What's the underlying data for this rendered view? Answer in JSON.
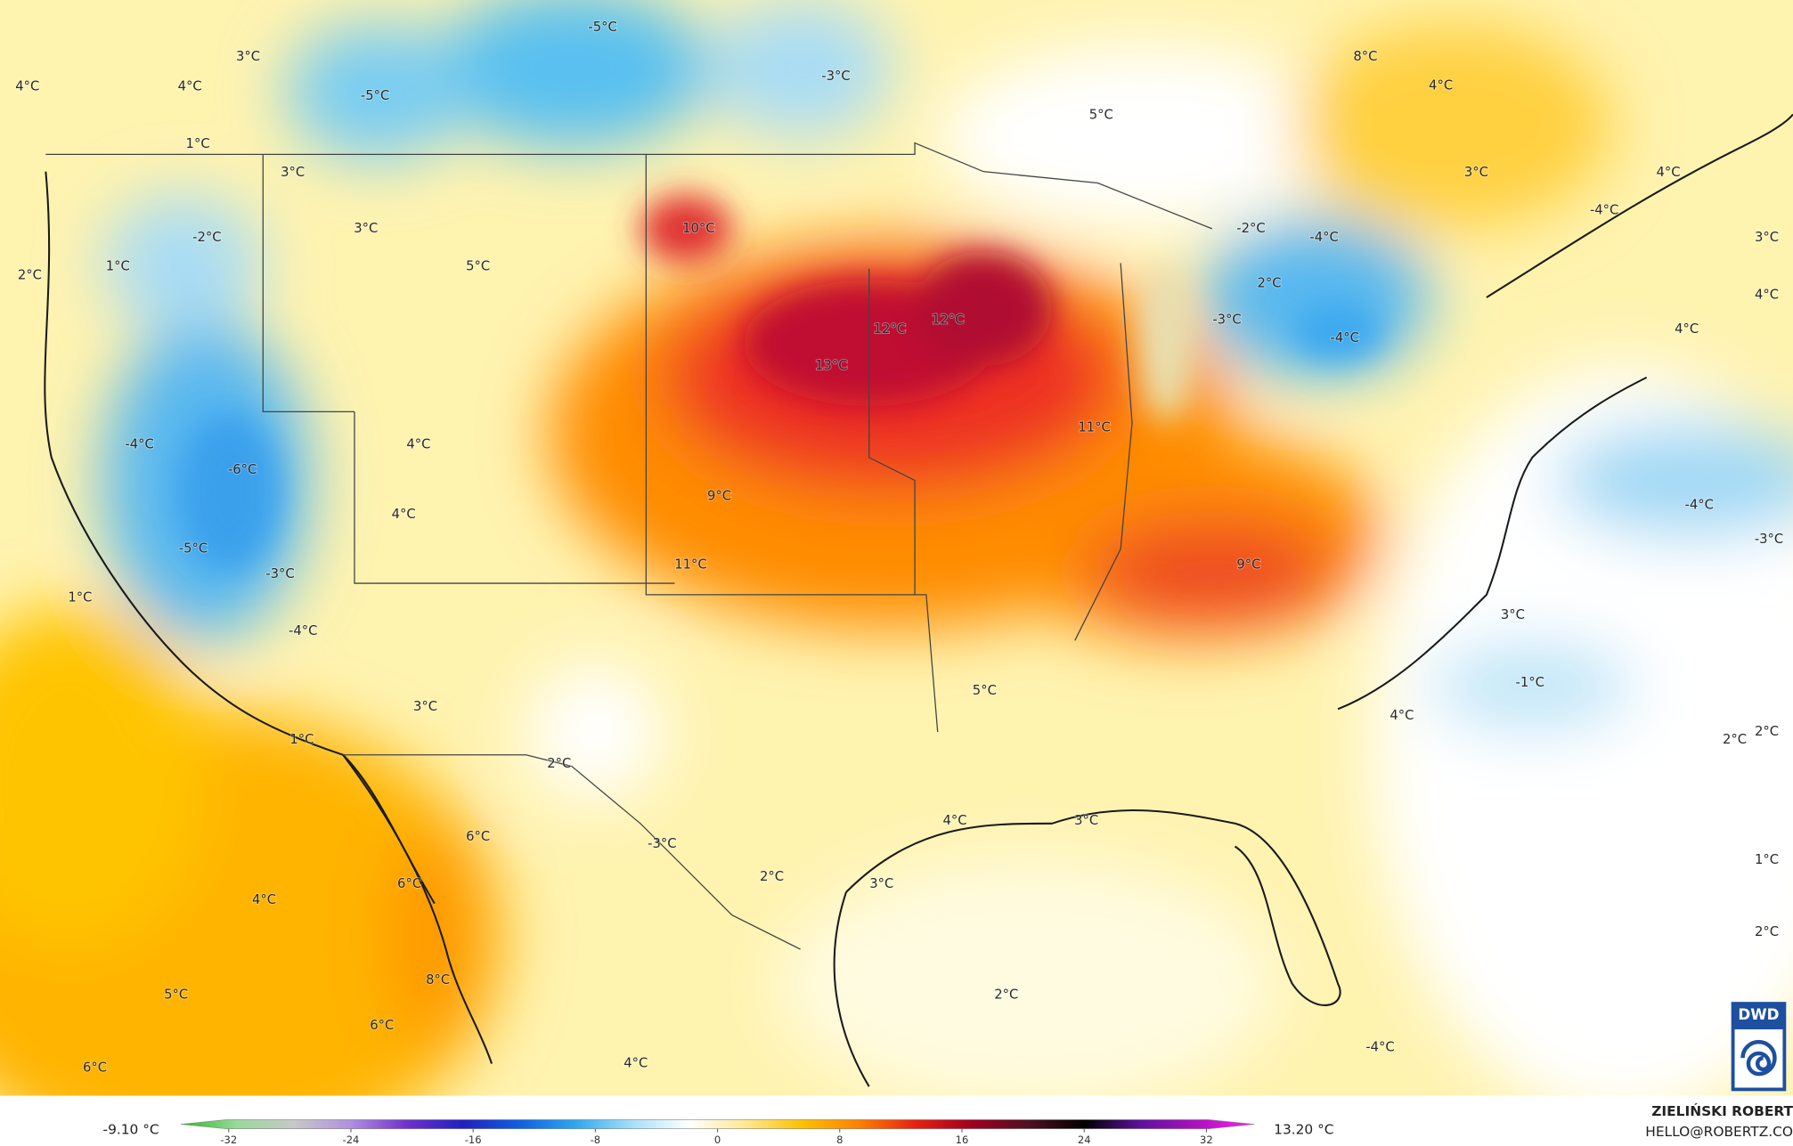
{
  "map": {
    "labels": [
      "-5°C",
      "3°C",
      "4°C",
      "4°C",
      "-5°C",
      "-3°C",
      "8°C",
      "4°C",
      "5°C",
      "1°C",
      "3°C",
      "3°C",
      "4°C",
      "3°C",
      "10°C",
      "-2°C",
      "-2°C",
      "-4°C",
      "-4°C",
      "3°C",
      "5°C",
      "1°C",
      "2°C",
      "2°C",
      "4°C",
      "12°C",
      "12°C",
      "-3°C",
      "-4°C",
      "4°C",
      "13°C",
      "11°C",
      "4°C",
      "-4°C",
      "-6°C",
      "9°C",
      "4°C",
      "-4°C",
      "-3°C",
      "-5°C",
      "11°C",
      "9°C",
      "-3°C",
      "1°C",
      "-4°C",
      "3°C",
      "-1°C",
      "5°C",
      "3°C",
      "4°C",
      "1°C",
      "2°C",
      "2°C",
      "2°C",
      "4°C",
      "3°C",
      "6°C",
      "-3°C",
      "2°C",
      "3°C",
      "6°C",
      "1°C",
      "4°C",
      "2°C",
      "8°C",
      "5°C",
      "2°C",
      "6°C",
      "-4°C",
      "4°C",
      "6°C"
    ],
    "logo": "DWD"
  },
  "colorbar": {
    "min_label": "-9.10 °C",
    "max_label": "13.20 °C",
    "lim": [
      -32,
      32
    ],
    "ticks": [
      -32,
      -24,
      -16,
      -8,
      0,
      8,
      16,
      24,
      32
    ],
    "colors": [
      "#22c022",
      "#9ad89a",
      "#c8c8c8",
      "#b090e0",
      "#7030d0",
      "#2020c0",
      "#1060e0",
      "#30a8f0",
      "#a8e0f8",
      "#ffffff",
      "#ffe890",
      "#ffc000",
      "#ff8000",
      "#e82010",
      "#a00020",
      "#501020",
      "#000000",
      "#6010a0",
      "#b010c0",
      "#ff20ff"
    ]
  },
  "credits": {
    "author": "ZIELIŃSKI ROBERT",
    "contact": "HELLO@ROBERTZ.CO"
  }
}
